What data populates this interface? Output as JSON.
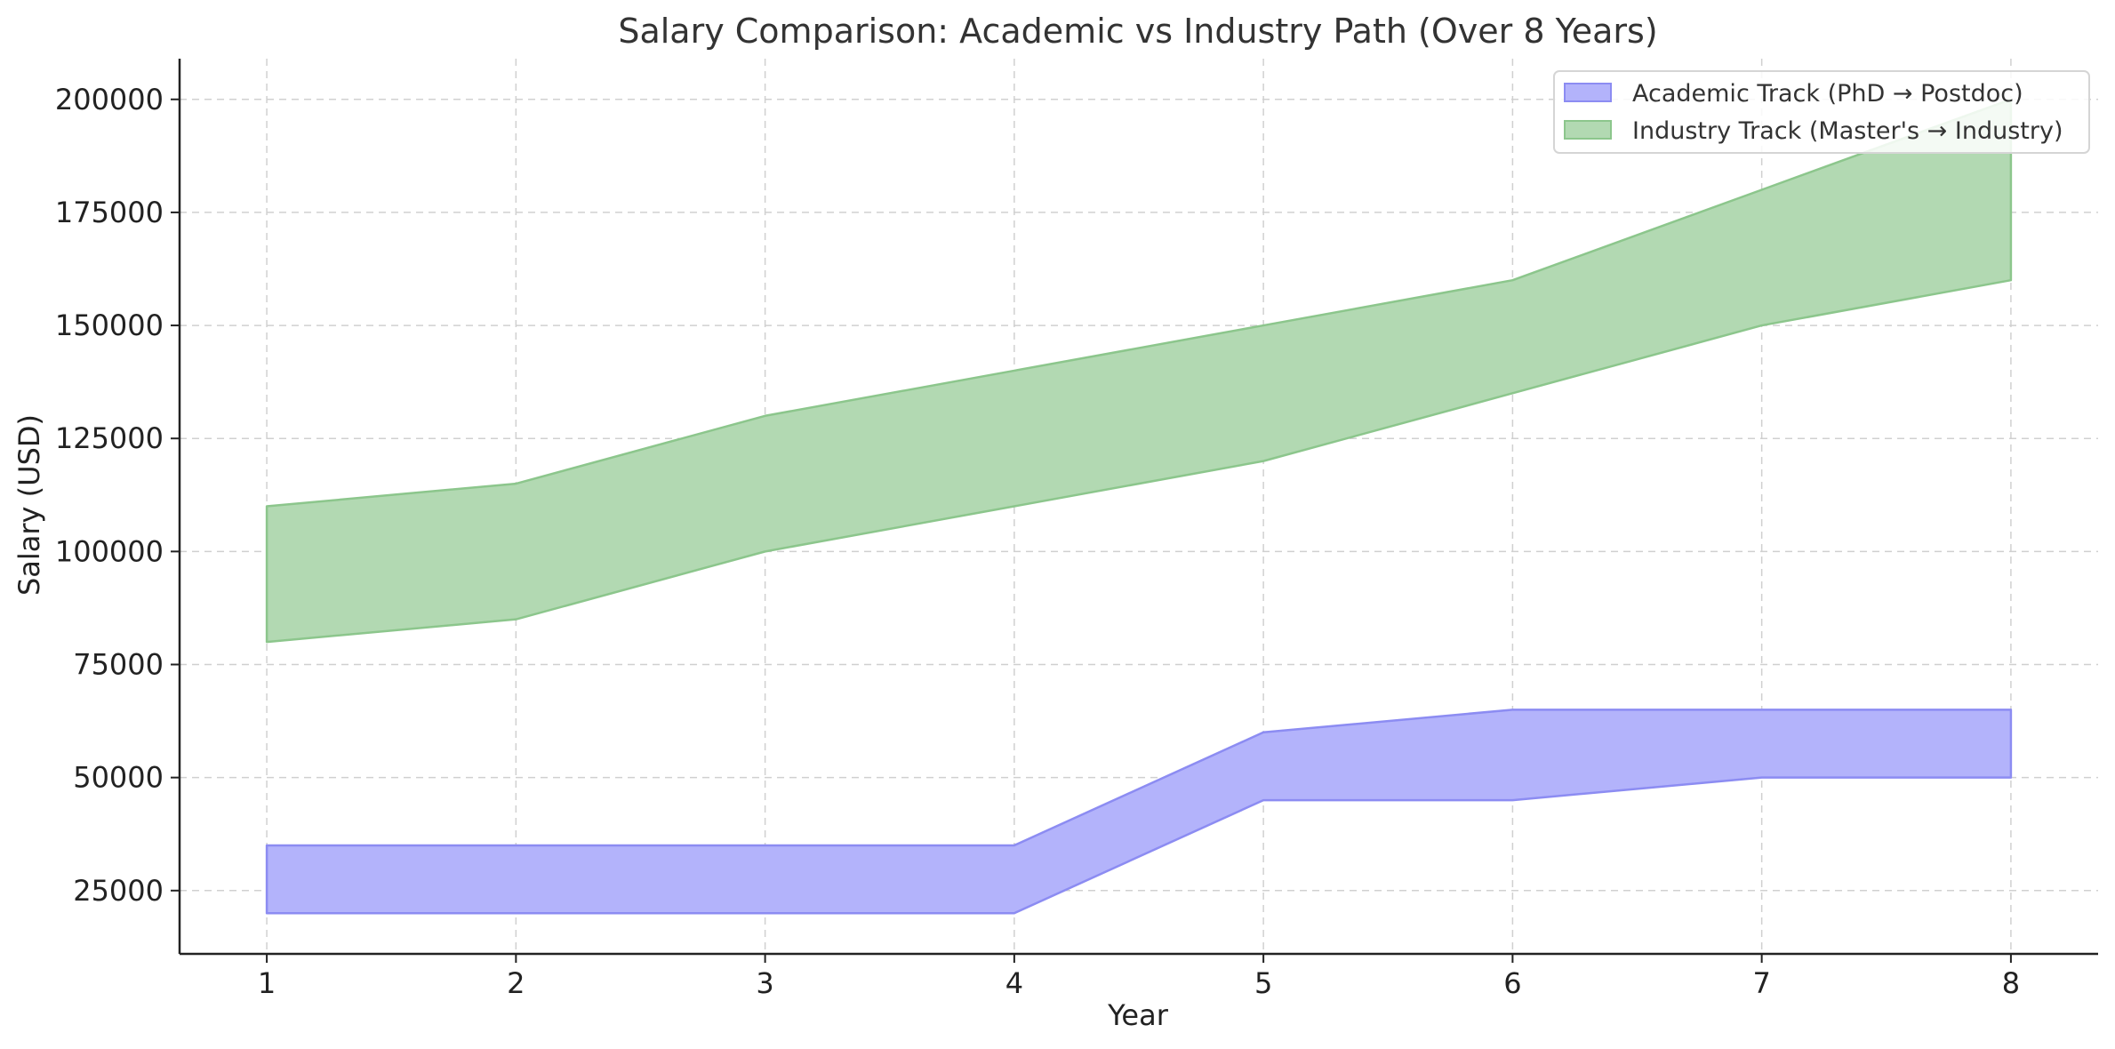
{
  "chart_data": {
    "type": "area",
    "title": "Salary Comparison: Academic vs Industry Path (Over 8 Years)",
    "xlabel": "Year",
    "ylabel": "Salary (USD)",
    "x": [
      1,
      2,
      3,
      4,
      5,
      6,
      7,
      8
    ],
    "xlim": [
      0.65,
      8.35
    ],
    "ylim": [
      11000,
      209000
    ],
    "xticks": [
      1,
      2,
      3,
      4,
      5,
      6,
      7,
      8
    ],
    "yticks": [
      25000,
      50000,
      75000,
      100000,
      125000,
      150000,
      175000,
      200000
    ],
    "grid": true,
    "legend_position": "top-right",
    "series": [
      {
        "name": "Academic Track (PhD → Postdoc)",
        "lower": [
          20000,
          20000,
          20000,
          20000,
          45000,
          45000,
          50000,
          50000
        ],
        "upper": [
          35000,
          35000,
          35000,
          35000,
          60000,
          65000,
          65000,
          65000
        ],
        "fill_color": "#b3b3fb",
        "edge_color": "#8c8cf2"
      },
      {
        "name": "Industry Track (Master's → Industry)",
        "lower": [
          80000,
          85000,
          100000,
          110000,
          120000,
          135000,
          150000,
          160000
        ],
        "upper": [
          110000,
          115000,
          130000,
          140000,
          150000,
          160000,
          180000,
          200000
        ],
        "fill_color": "#b2d9b2",
        "edge_color": "#8cc68c"
      }
    ]
  }
}
